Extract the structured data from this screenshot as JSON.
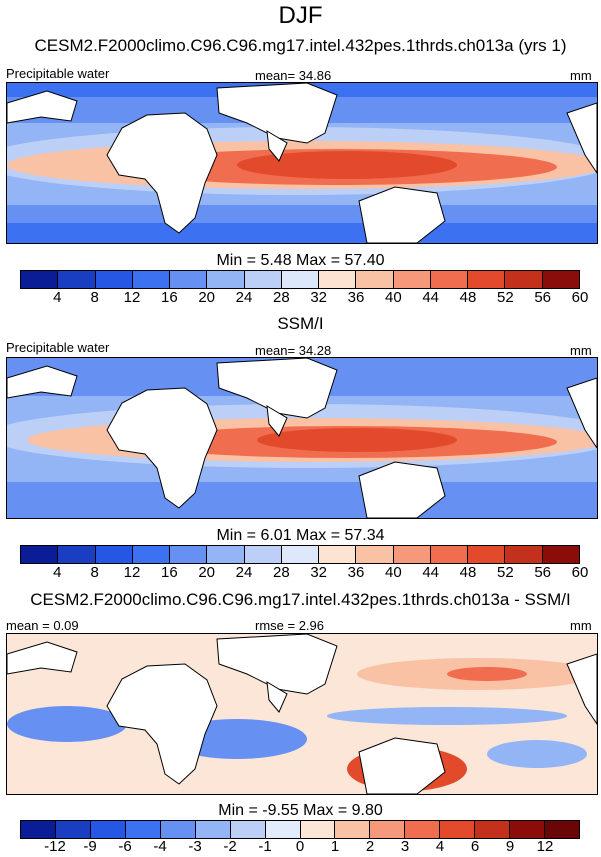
{
  "title": "DJF",
  "panels": [
    {
      "title": "CESM2.F2000climo.C96.C96.mg17.intel.432pes.1thrds.ch013a (yrs 1)",
      "left_label": "Precipitable water",
      "center_label": "mean=  34.86",
      "right_label": "mm",
      "minmax": "Min =   5.48 Max =  57.40",
      "colorbar_labels": [
        "4",
        "8",
        "12",
        "16",
        "20",
        "24",
        "28",
        "32",
        "36",
        "40",
        "44",
        "48",
        "52",
        "56",
        "60"
      ],
      "colors": [
        "#0a1c96",
        "#1a3ec2",
        "#2656e4",
        "#3c71f2",
        "#6690f2",
        "#93b4f5",
        "#bccff7",
        "#dde8fa",
        "#fde3d2",
        "#fac2a4",
        "#f6997a",
        "#f06d50",
        "#e34a2c",
        "#c3311c",
        "#8b0d0a"
      ]
    },
    {
      "title": "SSM/I",
      "left_label": "Precipitable water",
      "center_label": "mean=  34.28",
      "right_label": "mm",
      "minmax": "Min =   6.01 Max =  57.34",
      "colorbar_labels": [
        "4",
        "8",
        "12",
        "16",
        "20",
        "24",
        "28",
        "32",
        "36",
        "40",
        "44",
        "48",
        "52",
        "56",
        "60"
      ],
      "colors": [
        "#0a1c96",
        "#1a3ec2",
        "#2656e4",
        "#3c71f2",
        "#6690f2",
        "#93b4f5",
        "#bccff7",
        "#dde8fa",
        "#fde3d2",
        "#fac2a4",
        "#f6997a",
        "#f06d50",
        "#e34a2c",
        "#c3311c",
        "#8b0d0a"
      ]
    },
    {
      "title": "CESM2.F2000climo.C96.C96.mg17.intel.432pes.1thrds.ch013a - SSM/I",
      "left_label": "mean =   0.09",
      "center_label": "rmse =   2.96",
      "right_label": "mm",
      "minmax": "Min =  -9.55 Max =   9.80",
      "colorbar_labels": [
        "-12",
        "-9",
        "-6",
        "-4",
        "-3",
        "-2",
        "-1",
        "0",
        "1",
        "2",
        "3",
        "4",
        "6",
        "9",
        "12"
      ],
      "colors": [
        "#0a1c96",
        "#1a3ec2",
        "#2656e4",
        "#3c71f2",
        "#6690f2",
        "#93b4f5",
        "#bccff7",
        "#e3ecfb",
        "#fbe6d8",
        "#fac2a4",
        "#f6997a",
        "#f06d50",
        "#e34a2c",
        "#c3311c",
        "#8b0d0a",
        "#6b0606"
      ]
    }
  ]
}
